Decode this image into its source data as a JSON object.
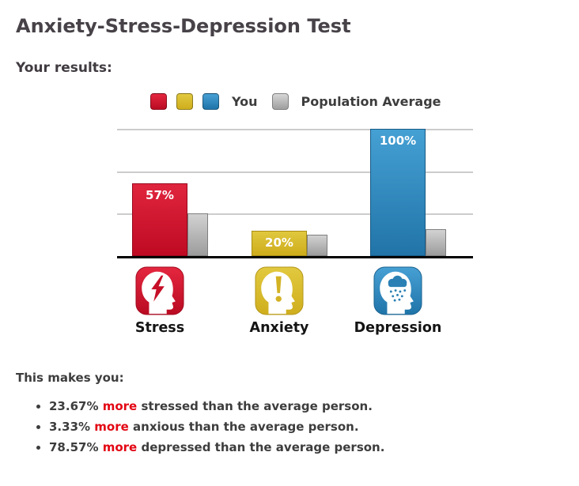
{
  "page": {
    "title": "Anxiety-Stress-Depression Test",
    "results_heading": "Your results:"
  },
  "legend": {
    "you_label": "You",
    "average_label": "Population Average",
    "you_swatch_colors": [
      "#cf1126",
      "#d8bc2a",
      "#2f86bd"
    ],
    "average_swatch_color": "#b0b0b0"
  },
  "chart_data": {
    "type": "bar",
    "categories": [
      "Stress",
      "Anxiety",
      "Depression"
    ],
    "series": [
      {
        "name": "You",
        "values": [
          57,
          20,
          100
        ],
        "colors": [
          "#cf1126",
          "#d8bc2a",
          "#2f86bd"
        ]
      },
      {
        "name": "Population Average",
        "values": [
          33.33,
          16.67,
          21.43
        ],
        "color": "#b0b0b0"
      }
    ],
    "bar_labels": [
      "57%",
      "20%",
      "100%"
    ],
    "bar_label_color": "#ffffff",
    "ylim": [
      0,
      100
    ],
    "gridlines": [
      33.33,
      66.67,
      100
    ],
    "grid_color": "#cccccc",
    "baseline_color": "#000000",
    "icons": [
      "stress-head-lightning-icon",
      "anxiety-head-exclamation-icon",
      "depression-head-raincloud-icon"
    ],
    "legend_position": "top-center"
  },
  "summary": {
    "heading": "This makes you:",
    "highlight_color": "#e30613",
    "items": [
      {
        "prefix": "23.67%",
        "highlight": "more",
        "rest": "stressed than the average person."
      },
      {
        "prefix": "3.33%",
        "highlight": "more",
        "rest": "anxious than the average person."
      },
      {
        "prefix": "78.57%",
        "highlight": "more",
        "rest": "depressed than the average person."
      }
    ]
  }
}
